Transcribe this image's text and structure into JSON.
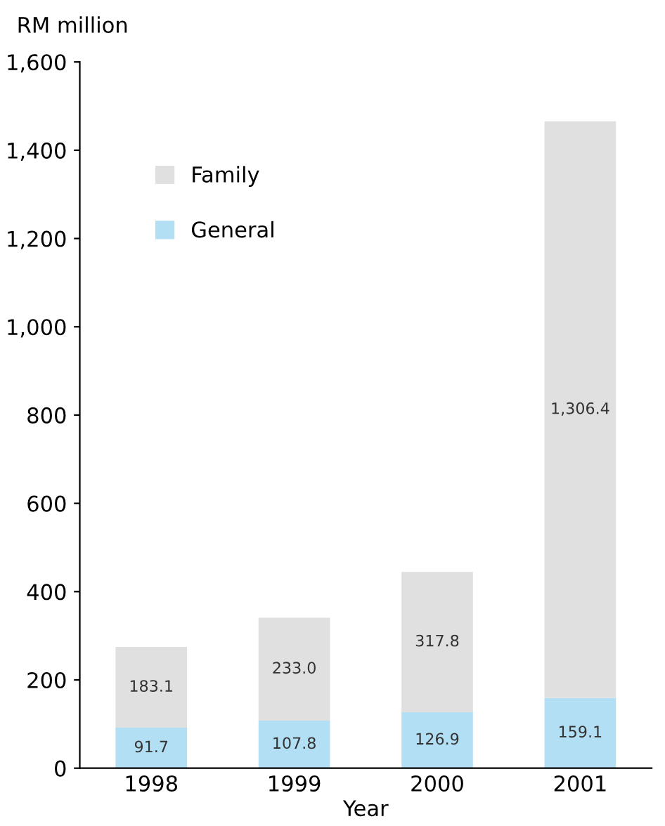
{
  "chart_data": {
    "type": "bar",
    "stacked": true,
    "ylabel": "RM million",
    "xlabel": "Year",
    "categories": [
      "1998",
      "1999",
      "2000",
      "2001"
    ],
    "series": [
      {
        "name": "General",
        "color": "#b3dff5",
        "values": [
          91.7,
          107.8,
          126.9,
          159.1
        ],
        "value_labels": [
          "91.7",
          "107.8",
          "126.9",
          "159.1"
        ]
      },
      {
        "name": "Family",
        "color": "#e0e0e0",
        "values": [
          183.1,
          233.0,
          317.8,
          1306.4
        ],
        "value_labels": [
          "183.1",
          "233.0",
          "317.8",
          "1,306.4"
        ]
      }
    ],
    "ylim": [
      0,
      1600
    ],
    "yticks": [
      0,
      200,
      400,
      600,
      800,
      {
        "value": 1000,
        "label": "1,000"
      },
      {
        "value": 1200,
        "label": "1,200"
      },
      {
        "value": 1400,
        "label": "1,400"
      },
      {
        "value": 1600,
        "label": "1,600"
      }
    ],
    "grid": false,
    "legend": "top left"
  }
}
